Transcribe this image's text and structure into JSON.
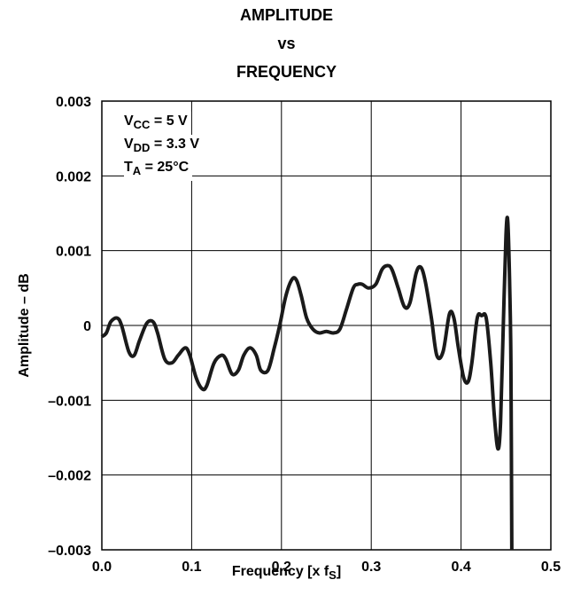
{
  "chart_data": {
    "type": "line",
    "title_lines": [
      "AMPLITUDE",
      "vs",
      "FREQUENCY"
    ],
    "xlabel_main": "Frequency [x f",
    "xlabel_sub": "S",
    "xlabel_end": "]",
    "ylabel": "Amplitude – dB",
    "xlim": [
      0.0,
      0.5
    ],
    "ylim": [
      -0.003,
      0.003
    ],
    "xticks": [
      0.0,
      0.1,
      0.2,
      0.3,
      0.4,
      0.5
    ],
    "xtick_labels": [
      "0.0",
      "0.1",
      "0.2",
      "0.3",
      "0.4",
      "0.5"
    ],
    "yticks": [
      0.003,
      0.002,
      0.001,
      0,
      -0.001,
      -0.002,
      -0.003
    ],
    "ytick_labels": [
      "0.003",
      "0.002",
      "0.001",
      "0",
      "–0.001",
      "–0.002",
      "–0.003"
    ],
    "grid": true,
    "annotations": [
      {
        "main": "V",
        "sub": "CC",
        "rest": " = 5 V"
      },
      {
        "main": "V",
        "sub": "DD",
        "rest": " = 3.3 V"
      },
      {
        "main": "T",
        "sub": "A",
        "rest": " = 25°C"
      }
    ],
    "series": [
      {
        "color": "#1a1a1a",
        "x": [
          0.0,
          0.005,
          0.01,
          0.017,
          0.022,
          0.03,
          0.036,
          0.042,
          0.05,
          0.057,
          0.062,
          0.07,
          0.078,
          0.085,
          0.093,
          0.098,
          0.105,
          0.112,
          0.117,
          0.125,
          0.133,
          0.138,
          0.145,
          0.152,
          0.158,
          0.165,
          0.172,
          0.177,
          0.185,
          0.192,
          0.198,
          0.205,
          0.212,
          0.217,
          0.222,
          0.228,
          0.235,
          0.242,
          0.25,
          0.258,
          0.265,
          0.272,
          0.28,
          0.285,
          0.29,
          0.297,
          0.305,
          0.312,
          0.318,
          0.323,
          0.33,
          0.337,
          0.343,
          0.35,
          0.355,
          0.36,
          0.367,
          0.373,
          0.38,
          0.387,
          0.392,
          0.397,
          0.403,
          0.408,
          0.412,
          0.418,
          0.423,
          0.428,
          0.433,
          0.437,
          0.441,
          0.444,
          0.447,
          0.45,
          0.452,
          0.454,
          0.4555,
          0.4565
        ],
        "y": [
          -0.00015,
          -0.0001,
          5e-05,
          0.0001,
          0.0,
          -0.00035,
          -0.0004,
          -0.0002,
          3e-05,
          5e-05,
          -0.0001,
          -0.00045,
          -0.0005,
          -0.0004,
          -0.0003,
          -0.0004,
          -0.0007,
          -0.00085,
          -0.0008,
          -0.0005,
          -0.0004,
          -0.00045,
          -0.00065,
          -0.0006,
          -0.0004,
          -0.0003,
          -0.0004,
          -0.0006,
          -0.0006,
          -0.0003,
          0.0,
          0.0004,
          0.00062,
          0.0006,
          0.0004,
          0.0001,
          -5e-05,
          -0.0001,
          -8e-05,
          -0.0001,
          -5e-05,
          0.0002,
          0.0005,
          0.00055,
          0.00055,
          0.0005,
          0.00055,
          0.00075,
          0.0008,
          0.00075,
          0.0005,
          0.00025,
          0.0003,
          0.0007,
          0.00078,
          0.0006,
          0.0001,
          -0.0004,
          -0.00035,
          0.00015,
          0.0001,
          -0.0003,
          -0.0007,
          -0.00075,
          -0.0005,
          0.0001,
          0.00013,
          0.0001,
          -0.0005,
          -0.0012,
          -0.00165,
          -0.0013,
          0.0,
          0.0012,
          0.0014,
          0.0006,
          -0.0005,
          -0.003
        ]
      }
    ]
  }
}
